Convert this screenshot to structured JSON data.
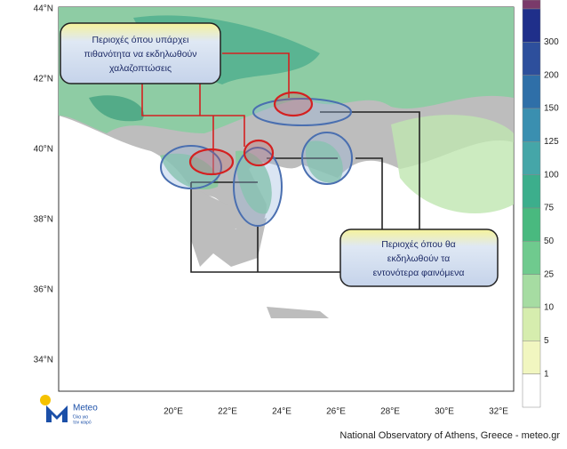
{
  "callouts": [
    {
      "lines": [
        "Περιοχές όπου υπάρχει",
        "πιθανότητα να εκδηλωθούν",
        "χαλαζοπτώσεις"
      ]
    },
    {
      "lines": [
        "Περιοχές όπου θα",
        "εκδηλωθούν τα",
        "εντονότερα φαινόμενα"
      ]
    }
  ],
  "lat_labels": [
    "44°N",
    "42°N",
    "40°N",
    "38°N",
    "36°N",
    "34°N"
  ],
  "lon_labels": [
    "20°E",
    "22°E",
    "24°E",
    "26°E",
    "28°E",
    "30°E",
    "32°E"
  ],
  "legend": {
    "values": [
      300,
      200,
      150,
      125,
      100,
      75,
      50,
      25,
      10,
      5,
      1
    ],
    "colors": [
      "#7a3a6a",
      "#1f2f8a",
      "#2d4f9c",
      "#2f6fa8",
      "#3a8fb0",
      "#45a6a8",
      "#3cae8c",
      "#49b97f",
      "#6fca8e",
      "#a6dca2",
      "#d6edae",
      "#f1f6c0",
      "#ffffff"
    ]
  },
  "logo": {
    "name": "Meteo",
    "tagline": [
      "Όλα για",
      "τον καιρό"
    ]
  },
  "credit": "National Observatory of Athens, Greece - meteo.gr"
}
